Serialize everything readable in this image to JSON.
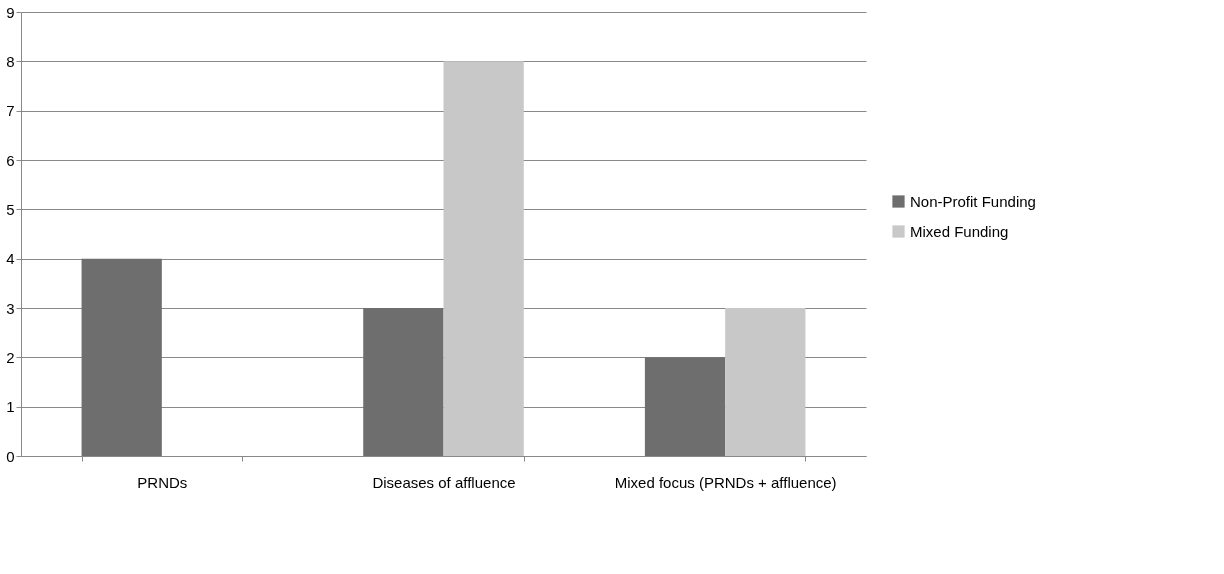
{
  "chart_data": {
    "type": "bar",
    "categories": [
      "PRNDs",
      "Diseases of affluence",
      "Mixed focus (PRNDs + affluence)"
    ],
    "series": [
      {
        "name": "Non-Profit Funding",
        "color": "#6e6e6e",
        "values": [
          4,
          3,
          2
        ]
      },
      {
        "name": "Mixed Funding",
        "color": "#c8c8c8",
        "values": [
          0,
          8,
          3
        ]
      }
    ],
    "ylim": [
      0,
      9
    ],
    "yticks": [
      0,
      1,
      2,
      3,
      4,
      5,
      6,
      7,
      8,
      9
    ],
    "grid": "y",
    "legend": "right"
  }
}
